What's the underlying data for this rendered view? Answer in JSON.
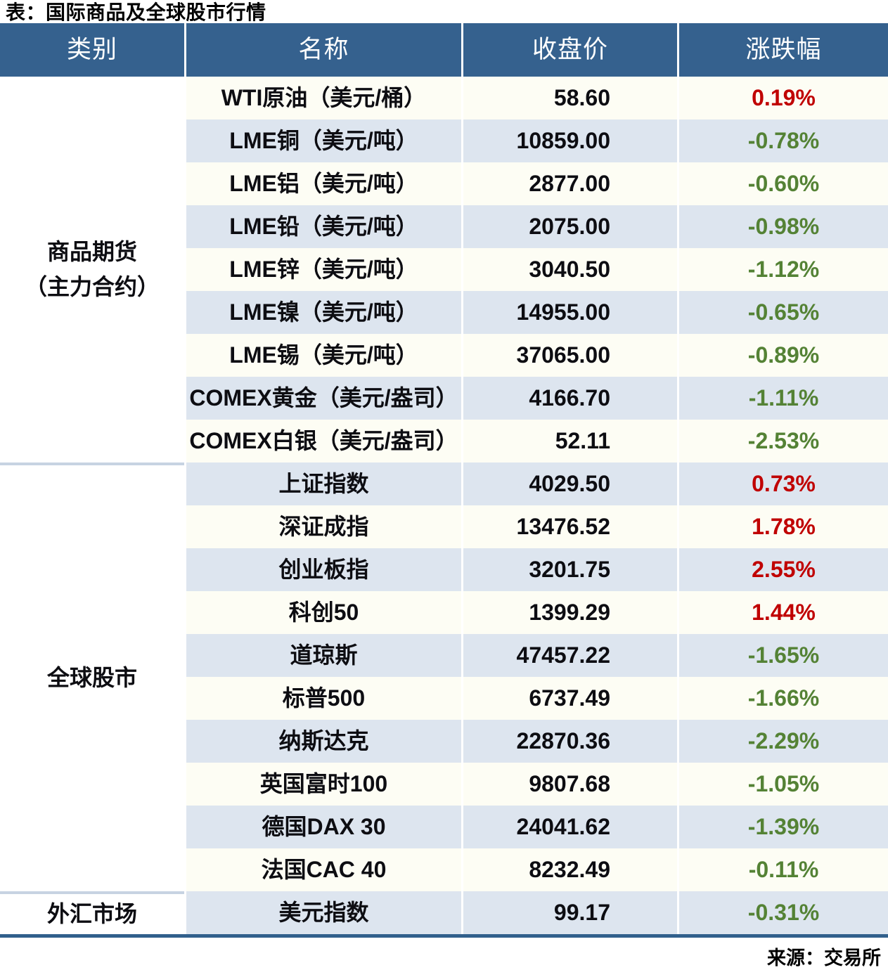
{
  "title": "表：国际商品及全球股市行情",
  "source": "来源：交易所",
  "colors": {
    "header_bg": "#35618E",
    "zebra_blue": "#DDE5EF",
    "zebra_white": "#FDFDF4",
    "up_red": "#C00000",
    "down_green": "#548235",
    "bottom_rule": "#31608C",
    "group_separator": "#C7D3E2"
  },
  "table": {
    "headers": [
      "类别",
      "名称",
      "收盘价",
      "涨跌幅"
    ],
    "groups": [
      {
        "category_lines": [
          "商品期货",
          "（主力合约）"
        ],
        "rows": [
          {
            "name": "WTI原油（美元/桶）",
            "close": "58.60",
            "change": "0.19%",
            "direction": "up"
          },
          {
            "name": "LME铜（美元/吨）",
            "close": "10859.00",
            "change": "-0.78%",
            "direction": "down"
          },
          {
            "name": "LME铝（美元/吨）",
            "close": "2877.00",
            "change": "-0.60%",
            "direction": "down"
          },
          {
            "name": "LME铅（美元/吨）",
            "close": "2075.00",
            "change": "-0.98%",
            "direction": "down"
          },
          {
            "name": "LME锌（美元/吨）",
            "close": "3040.50",
            "change": "-1.12%",
            "direction": "down"
          },
          {
            "name": "LME镍（美元/吨）",
            "close": "14955.00",
            "change": "-0.65%",
            "direction": "down"
          },
          {
            "name": "LME锡（美元/吨）",
            "close": "37065.00",
            "change": "-0.89%",
            "direction": "down"
          },
          {
            "name": "COMEX黄金（美元/盎司）",
            "close": "4166.70",
            "change": "-1.11%",
            "direction": "down"
          },
          {
            "name": "COMEX白银（美元/盎司）",
            "close": "52.11",
            "change": "-2.53%",
            "direction": "down"
          }
        ]
      },
      {
        "category_lines": [
          "全球股市"
        ],
        "rows": [
          {
            "name": "上证指数",
            "close": "4029.50",
            "change": "0.73%",
            "direction": "up"
          },
          {
            "name": "深证成指",
            "close": "13476.52",
            "change": "1.78%",
            "direction": "up"
          },
          {
            "name": "创业板指",
            "close": "3201.75",
            "change": "2.55%",
            "direction": "up"
          },
          {
            "name": "科创50",
            "close": "1399.29",
            "change": "1.44%",
            "direction": "up"
          },
          {
            "name": "道琼斯",
            "close": "47457.22",
            "change": "-1.65%",
            "direction": "down"
          },
          {
            "name": "标普500",
            "close": "6737.49",
            "change": "-1.66%",
            "direction": "down"
          },
          {
            "name": "纳斯达克",
            "close": "22870.36",
            "change": "-2.29%",
            "direction": "down"
          },
          {
            "name": "英国富时100",
            "close": "9807.68",
            "change": "-1.05%",
            "direction": "down"
          },
          {
            "name": "德国DAX 30",
            "close": "24041.62",
            "change": "-1.39%",
            "direction": "down"
          },
          {
            "name": "法国CAC 40",
            "close": "8232.49",
            "change": "-0.11%",
            "direction": "down"
          }
        ]
      },
      {
        "category_lines": [
          "外汇市场"
        ],
        "rows": [
          {
            "name": "美元指数",
            "close": "99.17",
            "change": "-0.31%",
            "direction": "down"
          }
        ]
      }
    ]
  }
}
